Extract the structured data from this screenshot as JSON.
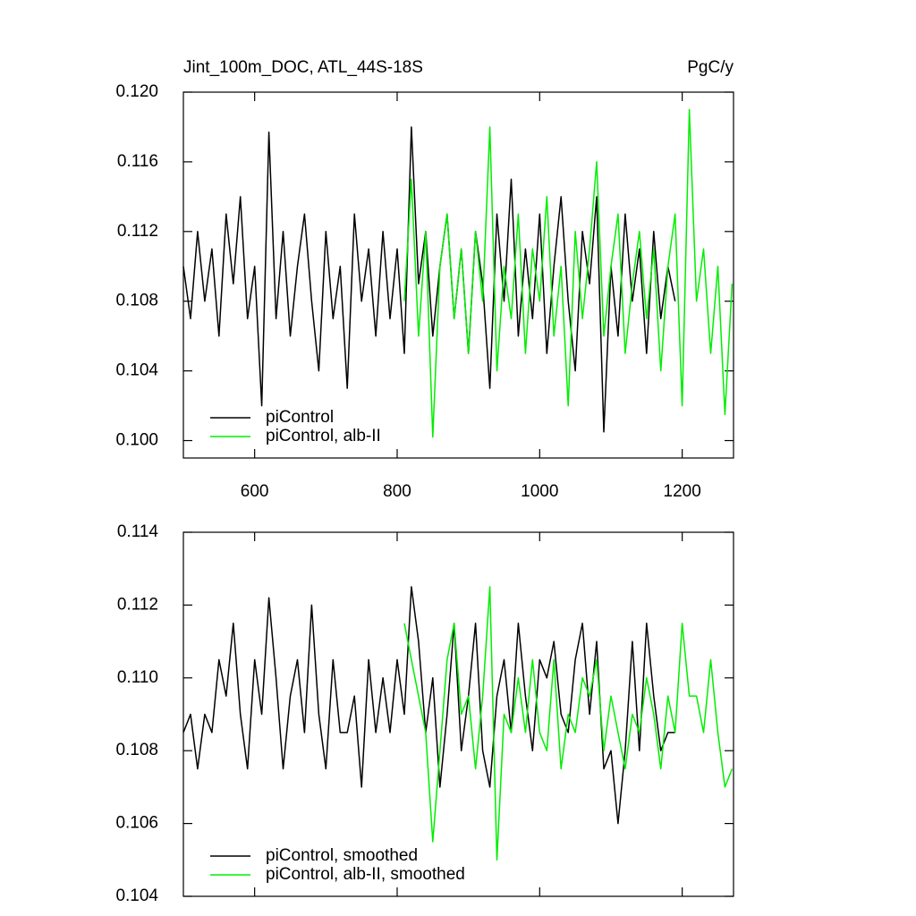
{
  "chart_data": [
    {
      "type": "line",
      "title": "Jint_100m_DOC, ATL_44S-18S",
      "right_title": "PgC/y",
      "x": [
        500,
        510,
        520,
        530,
        540,
        550,
        560,
        570,
        580,
        590,
        600,
        610,
        620,
        630,
        640,
        650,
        660,
        670,
        680,
        690,
        700,
        710,
        720,
        730,
        740,
        750,
        760,
        770,
        780,
        790,
        800,
        810,
        820,
        830,
        840,
        850,
        860,
        870,
        880,
        890,
        900,
        910,
        920,
        930,
        940,
        950,
        960,
        970,
        980,
        990,
        1000,
        1010,
        1020,
        1030,
        1040,
        1050,
        1060,
        1070,
        1080,
        1090,
        1100,
        1110,
        1120,
        1130,
        1140,
        1150,
        1160,
        1170,
        1180,
        1190,
        1200,
        1210,
        1220,
        1230,
        1240,
        1250,
        1260,
        1270
      ],
      "series": [
        {
          "name": "piControl",
          "color": "#000000",
          "values": [
            0.11,
            0.107,
            0.112,
            0.108,
            0.111,
            0.106,
            0.113,
            0.109,
            0.114,
            0.107,
            0.11,
            0.102,
            0.1177,
            0.107,
            0.112,
            0.106,
            0.11,
            0.113,
            0.108,
            0.104,
            0.112,
            0.107,
            0.11,
            0.103,
            0.113,
            0.108,
            0.111,
            0.106,
            0.112,
            0.107,
            0.111,
            0.105,
            0.118,
            0.109,
            0.112,
            0.106,
            0.11,
            0.113,
            0.107,
            0.111,
            0.105,
            0.112,
            0.109,
            0.103,
            0.113,
            0.108,
            0.115,
            0.106,
            0.111,
            0.107,
            0.113,
            0.105,
            0.11,
            0.114,
            0.108,
            0.104,
            0.112,
            0.109,
            0.114,
            0.1005,
            0.11,
            0.106,
            0.113,
            0.108,
            0.111,
            0.105,
            0.112,
            0.107,
            0.11,
            0.108,
            null,
            null,
            null,
            null,
            null,
            null,
            null,
            null
          ]
        },
        {
          "name": "piControl, alb-II",
          "color": "#00ee00",
          "values": [
            null,
            null,
            null,
            null,
            null,
            null,
            null,
            null,
            null,
            null,
            null,
            null,
            null,
            null,
            null,
            null,
            null,
            null,
            null,
            null,
            null,
            null,
            null,
            null,
            null,
            null,
            null,
            null,
            null,
            null,
            null,
            0.108,
            0.115,
            0.106,
            0.112,
            0.1002,
            0.11,
            0.113,
            0.107,
            0.111,
            0.105,
            0.112,
            0.108,
            0.118,
            0.104,
            0.11,
            0.107,
            0.113,
            0.105,
            0.111,
            0.108,
            0.114,
            0.106,
            0.11,
            0.102,
            0.112,
            0.107,
            0.111,
            0.116,
            0.106,
            0.11,
            0.113,
            0.105,
            0.109,
            0.112,
            0.107,
            0.111,
            0.104,
            0.11,
            0.113,
            0.102,
            0.119,
            0.108,
            0.111,
            0.105,
            0.11,
            0.1015,
            0.109
          ]
        }
      ],
      "xlim": [
        500,
        1272
      ],
      "xticks": [
        600,
        800,
        1000,
        1200
      ],
      "ylim": [
        0.099,
        0.12
      ],
      "yticks": [
        {
          "value": 0.1,
          "label": "0.100"
        },
        0.104,
        0.108,
        0.112,
        0.116,
        {
          "value": 0.12,
          "label": "0.120"
        }
      ],
      "legend": "lower left"
    },
    {
      "type": "line",
      "x": [
        500,
        510,
        520,
        530,
        540,
        550,
        560,
        570,
        580,
        590,
        600,
        610,
        620,
        630,
        640,
        650,
        660,
        670,
        680,
        690,
        700,
        710,
        720,
        730,
        740,
        750,
        760,
        770,
        780,
        790,
        800,
        810,
        820,
        830,
        840,
        850,
        860,
        870,
        880,
        890,
        900,
        910,
        920,
        930,
        940,
        950,
        960,
        970,
        980,
        990,
        1000,
        1010,
        1020,
        1030,
        1040,
        1050,
        1060,
        1070,
        1080,
        1090,
        1100,
        1110,
        1120,
        1130,
        1140,
        1150,
        1160,
        1170,
        1180,
        1190,
        1200,
        1210,
        1220,
        1230,
        1240,
        1250,
        1260,
        1270
      ],
      "series": [
        {
          "name": "piControl, smoothed",
          "color": "#000000",
          "values": [
            0.1085,
            0.109,
            0.1075,
            0.109,
            0.1085,
            0.1105,
            0.1095,
            0.1115,
            0.109,
            0.1075,
            0.1105,
            0.109,
            0.1122,
            0.11,
            0.1075,
            0.1095,
            0.1105,
            0.1085,
            0.112,
            0.109,
            0.1075,
            0.1105,
            0.1085,
            0.1085,
            0.1095,
            0.107,
            0.1105,
            0.1085,
            0.11,
            0.1085,
            0.1105,
            0.109,
            0.1125,
            0.111,
            0.1085,
            0.11,
            0.107,
            0.109,
            0.1115,
            0.108,
            0.1095,
            0.1115,
            0.108,
            0.107,
            0.1095,
            0.1105,
            0.1085,
            0.1115,
            0.1095,
            0.108,
            0.1105,
            0.11,
            0.111,
            0.109,
            0.1085,
            0.1105,
            0.1115,
            0.109,
            0.111,
            0.1075,
            0.108,
            0.106,
            0.108,
            0.111,
            0.108,
            0.1115,
            0.1095,
            0.108,
            0.1085,
            0.1085,
            null,
            null,
            null,
            null,
            null,
            null,
            null,
            null
          ]
        },
        {
          "name": "piControl, alb-II, smoothed",
          "color": "#00ee00",
          "values": [
            null,
            null,
            null,
            null,
            null,
            null,
            null,
            null,
            null,
            null,
            null,
            null,
            null,
            null,
            null,
            null,
            null,
            null,
            null,
            null,
            null,
            null,
            null,
            null,
            null,
            null,
            null,
            null,
            null,
            null,
            null,
            0.1115,
            0.1105,
            0.1095,
            0.1085,
            0.1055,
            0.108,
            0.1105,
            0.1115,
            0.109,
            0.1095,
            0.1075,
            0.1095,
            0.1125,
            0.105,
            0.109,
            0.1085,
            0.11,
            0.1085,
            0.1105,
            0.1085,
            0.108,
            0.1105,
            0.1075,
            0.109,
            0.1085,
            0.11,
            0.1095,
            0.1105,
            0.108,
            0.1095,
            0.1085,
            0.1075,
            0.109,
            0.1085,
            0.11,
            0.109,
            0.1075,
            0.1095,
            0.1085,
            0.1115,
            0.1095,
            0.1095,
            0.1085,
            0.1105,
            0.1085,
            0.107,
            0.1075
          ]
        }
      ],
      "xlim": [
        500,
        1272
      ],
      "xticks": [
        600,
        800,
        1000,
        1200
      ],
      "ylim": [
        0.104,
        0.114
      ],
      "yticks": [
        0.104,
        0.106,
        0.108,
        {
          "value": 0.11,
          "label": "0.110"
        },
        0.112,
        0.114
      ],
      "legend": "lower left"
    }
  ]
}
